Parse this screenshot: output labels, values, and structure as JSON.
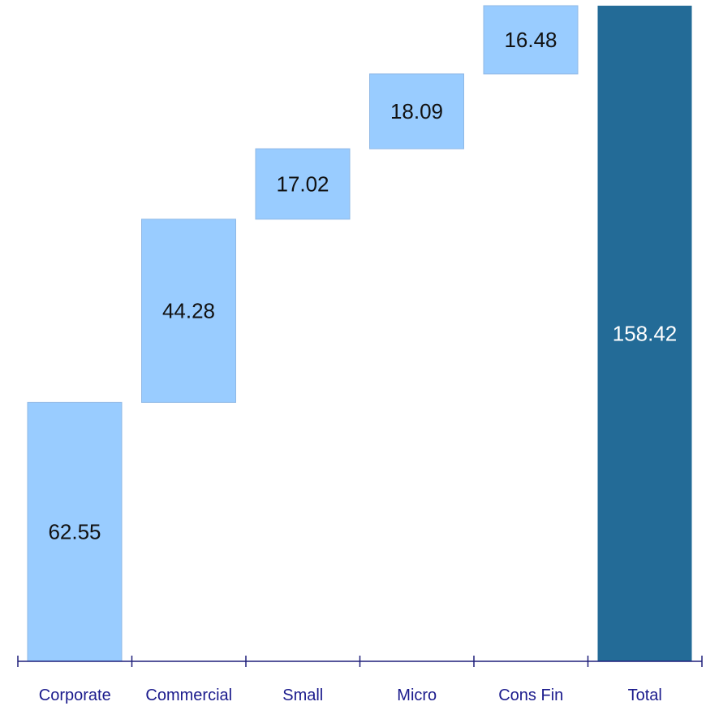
{
  "chart_data": {
    "type": "bar",
    "subtype": "waterfall",
    "title": "",
    "xlabel": "",
    "ylabel": "",
    "categories": [
      "Corporate",
      "Commercial",
      "Small",
      "Micro",
      "Cons Fin",
      "Total"
    ],
    "values": [
      62.55,
      44.28,
      17.02,
      18.09,
      16.48,
      158.42
    ],
    "labels": [
      "62.55",
      "44.28",
      "17.02",
      "18.09",
      "16.48",
      "158.42"
    ],
    "is_total": [
      false,
      false,
      false,
      false,
      false,
      true
    ],
    "ylim": [
      0,
      158.42
    ],
    "grid": false,
    "legend": "none",
    "colors": {
      "step_fill": "#99ccff",
      "step_stroke": "#8fb8e6",
      "total_fill": "#236b97",
      "axis": "#1f1f7a",
      "tick_label": "#1a1a8c",
      "data_label": "#111111",
      "total_label": "#ffffff"
    }
  }
}
